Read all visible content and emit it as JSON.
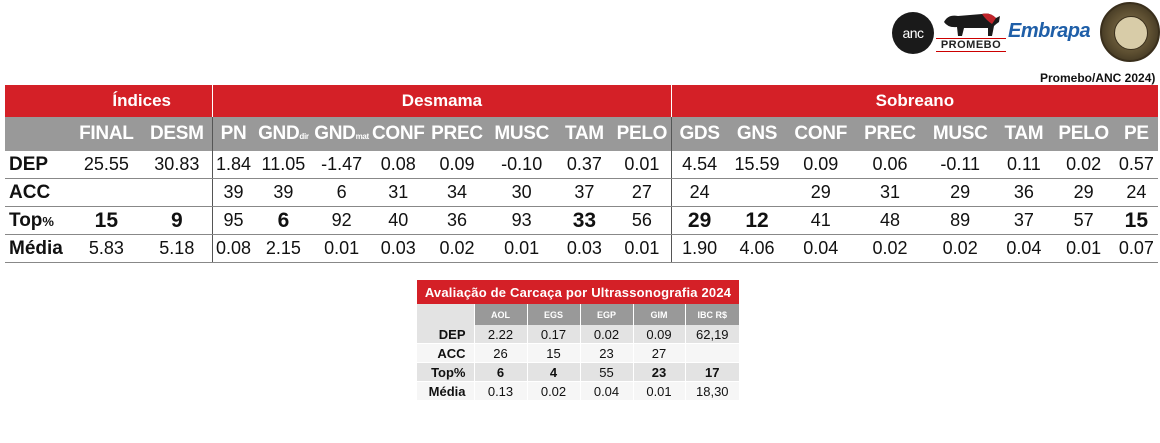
{
  "logos": {
    "anc_text": "anc",
    "promebo_text": "PROMEBO",
    "embrapa_text": "Embrapa",
    "seal_name": "seal-logo"
  },
  "source_note": "Promebo/ANC 2024)",
  "main": {
    "groups": {
      "indices": "Índices",
      "desmama": "Desmama",
      "sobreano": "Sobreano"
    },
    "columns": [
      {
        "label": "FINAL",
        "sub": ""
      },
      {
        "label": "DESM",
        "sub": ""
      },
      {
        "label": "PN",
        "sub": ""
      },
      {
        "label": "GND",
        "sub": "dir"
      },
      {
        "label": "GND",
        "sub": "mat"
      },
      {
        "label": "CONF",
        "sub": ""
      },
      {
        "label": "PREC",
        "sub": ""
      },
      {
        "label": "MUSC",
        "sub": ""
      },
      {
        "label": "TAM",
        "sub": ""
      },
      {
        "label": "PELO",
        "sub": ""
      },
      {
        "label": "GDS",
        "sub": ""
      },
      {
        "label": "GNS",
        "sub": ""
      },
      {
        "label": "CONF",
        "sub": ""
      },
      {
        "label": "PREC",
        "sub": ""
      },
      {
        "label": "MUSC",
        "sub": ""
      },
      {
        "label": "TAM",
        "sub": ""
      },
      {
        "label": "PELO",
        "sub": ""
      },
      {
        "label": "PE",
        "sub": ""
      }
    ],
    "rows": [
      {
        "label": "DEP",
        "label_suffix": "",
        "values": [
          "25.55",
          "30.83",
          "1.84",
          "11.05",
          "-1.47",
          "0.08",
          "0.09",
          "-0.10",
          "0.37",
          "0.01",
          "4.54",
          "15.59",
          "0.09",
          "0.06",
          "-0.11",
          "0.11",
          "0.02",
          "0.57"
        ]
      },
      {
        "label": "ACC",
        "label_suffix": "",
        "values": [
          "",
          "",
          "39",
          "39",
          "6",
          "31",
          "34",
          "30",
          "37",
          "27",
          "24",
          "",
          "29",
          "31",
          "29",
          "36",
          "29",
          "24"
        ]
      },
      {
        "label": "Top",
        "label_suffix": "%",
        "values": [
          "15",
          "9",
          "95",
          "6",
          "92",
          "40",
          "36",
          "93",
          "33",
          "56",
          "29",
          "12",
          "41",
          "48",
          "89",
          "37",
          "57",
          "15"
        ]
      },
      {
        "label": "Média",
        "label_suffix": "",
        "values": [
          "5.83",
          "5.18",
          "0.08",
          "2.15",
          "0.01",
          "0.03",
          "0.02",
          "0.01",
          "0.03",
          "0.01",
          "1.90",
          "4.06",
          "0.04",
          "0.02",
          "0.02",
          "0.04",
          "0.01",
          "0.07"
        ]
      }
    ]
  },
  "carcass": {
    "title": "Avaliação de Carcaça por Ultrassonografia 2024",
    "columns": [
      "AOL",
      "EGS",
      "EGP",
      "GIM",
      "IBC R$"
    ],
    "rows": [
      {
        "label": "DEP",
        "values": [
          "2.22",
          "0.17",
          "0.02",
          "0.09",
          "62,19"
        ]
      },
      {
        "label": "ACC",
        "values": [
          "26",
          "15",
          "23",
          "27",
          ""
        ]
      },
      {
        "label": "Top%",
        "values": [
          "6",
          "4",
          "55",
          "23",
          "17"
        ]
      },
      {
        "label": "Média",
        "values": [
          "0.13",
          "0.02",
          "0.04",
          "0.01",
          "18,30"
        ]
      }
    ]
  },
  "colors": {
    "header_red": "#d42027",
    "header_gray": "#999999",
    "row_gray": "#e3e3e3"
  }
}
